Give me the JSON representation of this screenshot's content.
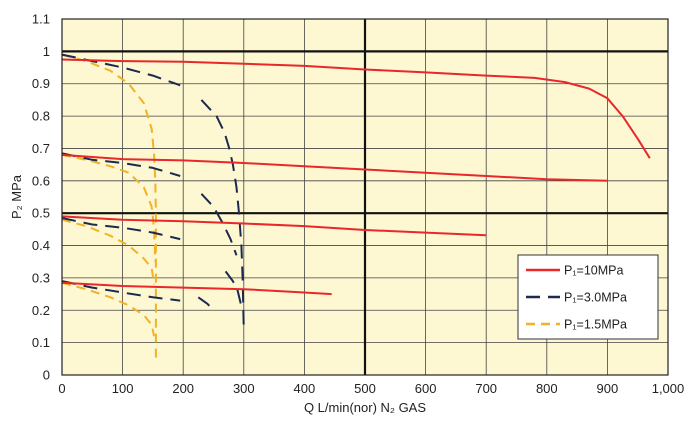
{
  "chart_data": {
    "type": "line",
    "xlabel": "Q L/min(nor) N₂ GAS",
    "ylabel": "P₂ MPa",
    "xlim": [
      0,
      1000
    ],
    "ylim": [
      0,
      1.1
    ],
    "x_ticks": [
      "0",
      "100",
      "200",
      "300",
      "400",
      "500",
      "600",
      "700",
      "800",
      "900",
      "1,000"
    ],
    "y_ticks": [
      "0",
      "0.1",
      "0.2",
      "0.3",
      "0.4",
      "0.5",
      "0.6",
      "0.7",
      "0.8",
      "0.9",
      "1",
      "1.1"
    ],
    "grid": true,
    "background": "#fdf7d2",
    "legend_position": "right",
    "series": [
      {
        "name": "P₁=10MPa",
        "color": "#e8282b",
        "style": "solid",
        "curves": [
          [
            [
              0,
              0.975
            ],
            [
              100,
              0.97
            ],
            [
              200,
              0.968
            ],
            [
              300,
              0.962
            ],
            [
              400,
              0.955
            ],
            [
              500,
              0.944
            ],
            [
              600,
              0.935
            ],
            [
              700,
              0.925
            ],
            [
              780,
              0.918
            ],
            [
              830,
              0.905
            ],
            [
              870,
              0.885
            ],
            [
              900,
              0.855
            ],
            [
              925,
              0.8
            ],
            [
              950,
              0.73
            ],
            [
              970,
              0.67
            ]
          ],
          [
            [
              0,
              0.68
            ],
            [
              100,
              0.667
            ],
            [
              200,
              0.663
            ],
            [
              300,
              0.655
            ],
            [
              400,
              0.645
            ],
            [
              500,
              0.635
            ],
            [
              600,
              0.625
            ],
            [
              700,
              0.615
            ],
            [
              800,
              0.605
            ],
            [
              900,
              0.6
            ]
          ],
          [
            [
              0,
              0.49
            ],
            [
              100,
              0.48
            ],
            [
              200,
              0.475
            ],
            [
              300,
              0.468
            ],
            [
              400,
              0.46
            ],
            [
              500,
              0.448
            ],
            [
              600,
              0.44
            ],
            [
              700,
              0.432
            ]
          ],
          [
            [
              0,
              0.285
            ],
            [
              100,
              0.275
            ],
            [
              200,
              0.27
            ],
            [
              300,
              0.265
            ],
            [
              400,
              0.255
            ],
            [
              445,
              0.25
            ]
          ]
        ]
      },
      {
        "name": "P₁=3.0MPa",
        "color": "#1b2a4e",
        "style": "dashed",
        "curves": [
          [
            [
              0,
              0.99
            ],
            [
              50,
              0.97
            ],
            [
              100,
              0.95
            ],
            [
              150,
              0.925
            ],
            [
              195,
              0.895
            ]
          ],
          [
            [
              0,
              0.685
            ],
            [
              50,
              0.665
            ],
            [
              100,
              0.655
            ],
            [
              150,
              0.64
            ],
            [
              195,
              0.615
            ]
          ],
          [
            [
              0,
              0.485
            ],
            [
              50,
              0.465
            ],
            [
              100,
              0.455
            ],
            [
              150,
              0.44
            ],
            [
              195,
              0.42
            ]
          ],
          [
            [
              0,
              0.29
            ],
            [
              50,
              0.27
            ],
            [
              100,
              0.255
            ],
            [
              150,
              0.24
            ],
            [
              195,
              0.23
            ]
          ],
          [
            [
              230,
              0.85
            ],
            [
              255,
              0.8
            ],
            [
              268,
              0.75
            ],
            [
              276,
              0.7
            ],
            [
              282,
              0.65
            ],
            [
              288,
              0.58
            ],
            [
              292,
              0.5
            ],
            [
              294,
              0.45
            ],
            [
              296,
              0.4
            ],
            [
              298,
              0.3
            ],
            [
              299,
              0.22
            ],
            [
              300,
              0.14
            ]
          ],
          [
            [
              230,
              0.56
            ],
            [
              250,
              0.52
            ],
            [
              265,
              0.47
            ],
            [
              278,
              0.42
            ],
            [
              288,
              0.37
            ]
          ],
          [
            [
              225,
              0.24
            ],
            [
              240,
              0.22
            ],
            [
              250,
              0.2
            ]
          ],
          [
            [
              270,
              0.32
            ],
            [
              282,
              0.29
            ],
            [
              290,
              0.26
            ],
            [
              295,
              0.22
            ]
          ]
        ]
      },
      {
        "name": "P₁=1.5MPa",
        "color": "#f0b323",
        "style": "dashed",
        "curves": [
          [
            [
              0,
              0.99
            ],
            [
              40,
              0.97
            ],
            [
              80,
              0.94
            ],
            [
              110,
              0.9
            ],
            [
              135,
              0.84
            ],
            [
              148,
              0.76
            ],
            [
              152,
              0.68
            ],
            [
              154,
              0.6
            ],
            [
              155,
              0.5
            ],
            [
              155,
              0.4
            ],
            [
              155,
              0.3
            ],
            [
              155,
              0.15
            ],
            [
              155,
              0.05
            ]
          ],
          [
            [
              0,
              0.68
            ],
            [
              40,
              0.665
            ],
            [
              80,
              0.645
            ],
            [
              110,
              0.625
            ],
            [
              135,
              0.58
            ],
            [
              148,
              0.52
            ],
            [
              152,
              0.45
            ],
            [
              154,
              0.35
            ]
          ],
          [
            [
              0,
              0.48
            ],
            [
              40,
              0.46
            ],
            [
              80,
              0.43
            ],
            [
              110,
              0.4
            ],
            [
              135,
              0.36
            ],
            [
              148,
              0.33
            ],
            [
              152,
              0.28
            ]
          ],
          [
            [
              0,
              0.285
            ],
            [
              40,
              0.265
            ],
            [
              80,
              0.24
            ],
            [
              110,
              0.215
            ],
            [
              135,
              0.185
            ],
            [
              148,
              0.155
            ],
            [
              152,
              0.12
            ]
          ]
        ]
      }
    ]
  }
}
